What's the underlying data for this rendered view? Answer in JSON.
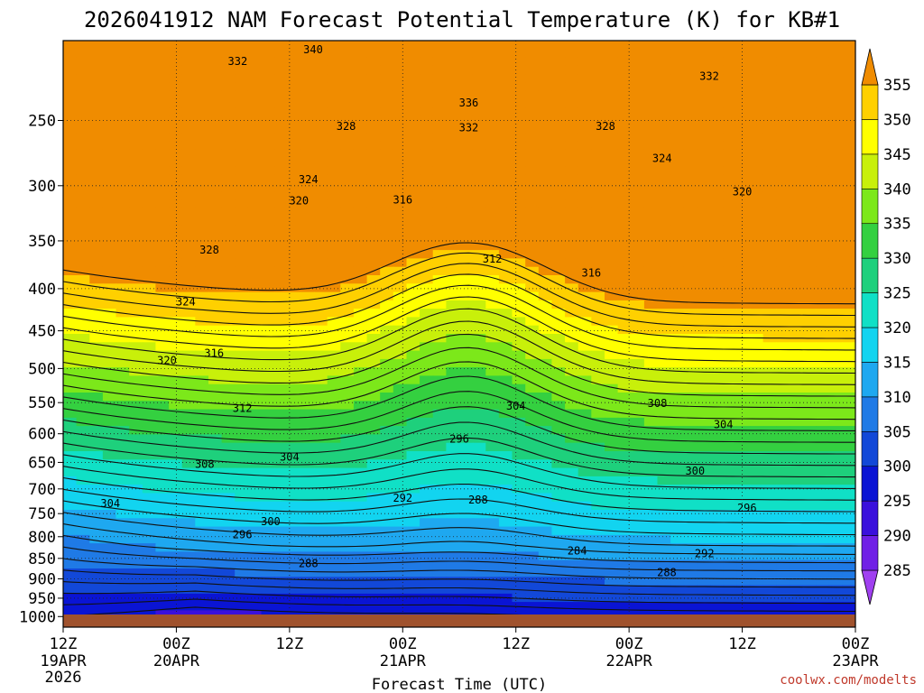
{
  "chart_data": {
    "type": "heatmap",
    "title": "2026041912 NAM Forecast Potential Temperature (K) for KB#1",
    "xlabel": "Forecast Time (UTC)",
    "ylabel": "",
    "credit": "coolwx.com/modelts",
    "y_scale": "log-pressure",
    "ylim": [
      1030,
      200
    ],
    "xlim_hours": [
      0,
      84
    ],
    "y_ticks": [
      250,
      300,
      350,
      400,
      450,
      500,
      550,
      600,
      650,
      700,
      750,
      800,
      850,
      900,
      950,
      1000
    ],
    "x_ticks": [
      {
        "hour": 0,
        "label": "12Z",
        "date": "19APR",
        "year": "2026"
      },
      {
        "hour": 12,
        "label": "00Z",
        "date": "20APR",
        "year": ""
      },
      {
        "hour": 24,
        "label": "12Z",
        "date": "",
        "year": ""
      },
      {
        "hour": 36,
        "label": "00Z",
        "date": "21APR",
        "year": ""
      },
      {
        "hour": 48,
        "label": "12Z",
        "date": "",
        "year": ""
      },
      {
        "hour": 60,
        "label": "00Z",
        "date": "22APR",
        "year": ""
      },
      {
        "hour": 72,
        "label": "12Z",
        "date": "",
        "year": ""
      },
      {
        "hour": 84,
        "label": "00Z",
        "date": "23APR",
        "year": ""
      }
    ],
    "colorbar": {
      "levels": [
        285,
        290,
        295,
        300,
        305,
        310,
        315,
        320,
        325,
        330,
        335,
        340,
        345,
        350,
        355
      ],
      "colors": [
        "#a040f0",
        "#7020e6",
        "#3a10dc",
        "#0a14d4",
        "#1248d8",
        "#1f7ae6",
        "#1ea8f0",
        "#12d4f0",
        "#10e0c6",
        "#1ed07c",
        "#34d040",
        "#7ce81a",
        "#c8f00a",
        "#ffff00",
        "#ffd000",
        "#f08c00"
      ]
    },
    "contour_labels": [
      {
        "value": 340,
        "hour": 26.5,
        "p": 205
      },
      {
        "value": 332,
        "hour": 18.5,
        "p": 212
      },
      {
        "value": 332,
        "hour": 68.5,
        "p": 221
      },
      {
        "value": 336,
        "hour": 43,
        "p": 238
      },
      {
        "value": 332,
        "hour": 43,
        "p": 255
      },
      {
        "value": 328,
        "hour": 30,
        "p": 254
      },
      {
        "value": 328,
        "hour": 57.5,
        "p": 254
      },
      {
        "value": 324,
        "hour": 63.5,
        "p": 278
      },
      {
        "value": 324,
        "hour": 26,
        "p": 295
      },
      {
        "value": 320,
        "hour": 25,
        "p": 313
      },
      {
        "value": 320,
        "hour": 72,
        "p": 305
      },
      {
        "value": 316,
        "hour": 36,
        "p": 312
      },
      {
        "value": 328,
        "hour": 15.5,
        "p": 359
      },
      {
        "value": 312,
        "hour": 45.5,
        "p": 368
      },
      {
        "value": 316,
        "hour": 56,
        "p": 383
      },
      {
        "value": 324,
        "hour": 13,
        "p": 415
      },
      {
        "value": 316,
        "hour": 16,
        "p": 479
      },
      {
        "value": 320,
        "hour": 11,
        "p": 489
      },
      {
        "value": 312,
        "hour": 19,
        "p": 559
      },
      {
        "value": 304,
        "hour": 48,
        "p": 555
      },
      {
        "value": 308,
        "hour": 63,
        "p": 551
      },
      {
        "value": 304,
        "hour": 70,
        "p": 585
      },
      {
        "value": 296,
        "hour": 42,
        "p": 609
      },
      {
        "value": 304,
        "hour": 24,
        "p": 640
      },
      {
        "value": 308,
        "hour": 15,
        "p": 653
      },
      {
        "value": 300,
        "hour": 67,
        "p": 666
      },
      {
        "value": 292,
        "hour": 36,
        "p": 718
      },
      {
        "value": 288,
        "hour": 44,
        "p": 722
      },
      {
        "value": 304,
        "hour": 5,
        "p": 729
      },
      {
        "value": 296,
        "hour": 72.5,
        "p": 738
      },
      {
        "value": 300,
        "hour": 22,
        "p": 767
      },
      {
        "value": 296,
        "hour": 19,
        "p": 795
      },
      {
        "value": 284,
        "hour": 54.5,
        "p": 832
      },
      {
        "value": 292,
        "hour": 68,
        "p": 839
      },
      {
        "value": 288,
        "hour": 26,
        "p": 862
      },
      {
        "value": 288,
        "hour": 64,
        "p": 884
      }
    ]
  }
}
